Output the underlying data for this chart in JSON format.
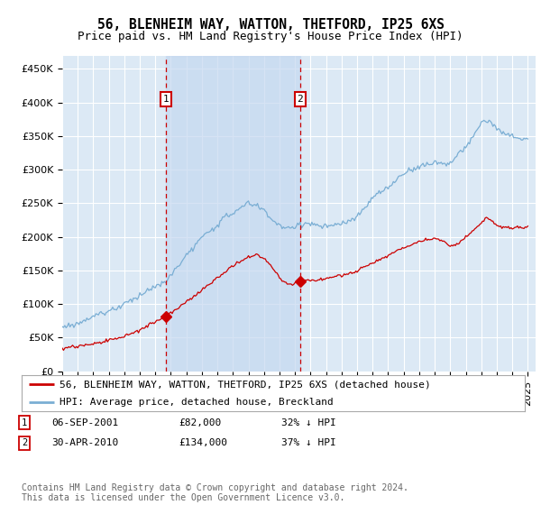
{
  "title": "56, BLENHEIM WAY, WATTON, THETFORD, IP25 6XS",
  "subtitle": "Price paid vs. HM Land Registry's House Price Index (HPI)",
  "ylabel_ticks": [
    "£0",
    "£50K",
    "£100K",
    "£150K",
    "£200K",
    "£250K",
    "£300K",
    "£350K",
    "£400K",
    "£450K"
  ],
  "ytick_values": [
    0,
    50000,
    100000,
    150000,
    200000,
    250000,
    300000,
    350000,
    400000,
    450000
  ],
  "ylim": [
    0,
    470000
  ],
  "xlim_start": 1995.0,
  "xlim_end": 2025.5,
  "background_color": "#dce9f5",
  "grid_color": "#ffffff",
  "shade_color": "#c5d8f0",
  "transaction1_x": 2001.68,
  "transaction1_y": 82000,
  "transaction2_x": 2010.33,
  "transaction2_y": 134000,
  "transaction1_date": "06-SEP-2001",
  "transaction1_price": "£82,000",
  "transaction1_hpi": "32% ↓ HPI",
  "transaction2_date": "30-APR-2010",
  "transaction2_price": "£134,000",
  "transaction2_hpi": "37% ↓ HPI",
  "red_line_color": "#cc0000",
  "blue_line_color": "#7aaed4",
  "legend_label_red": "56, BLENHEIM WAY, WATTON, THETFORD, IP25 6XS (detached house)",
  "legend_label_blue": "HPI: Average price, detached house, Breckland",
  "footer_text": "Contains HM Land Registry data © Crown copyright and database right 2024.\nThis data is licensed under the Open Government Licence v3.0.",
  "title_fontsize": 10.5,
  "subtitle_fontsize": 9,
  "tick_fontsize": 8,
  "legend_fontsize": 8,
  "footer_fontsize": 7
}
